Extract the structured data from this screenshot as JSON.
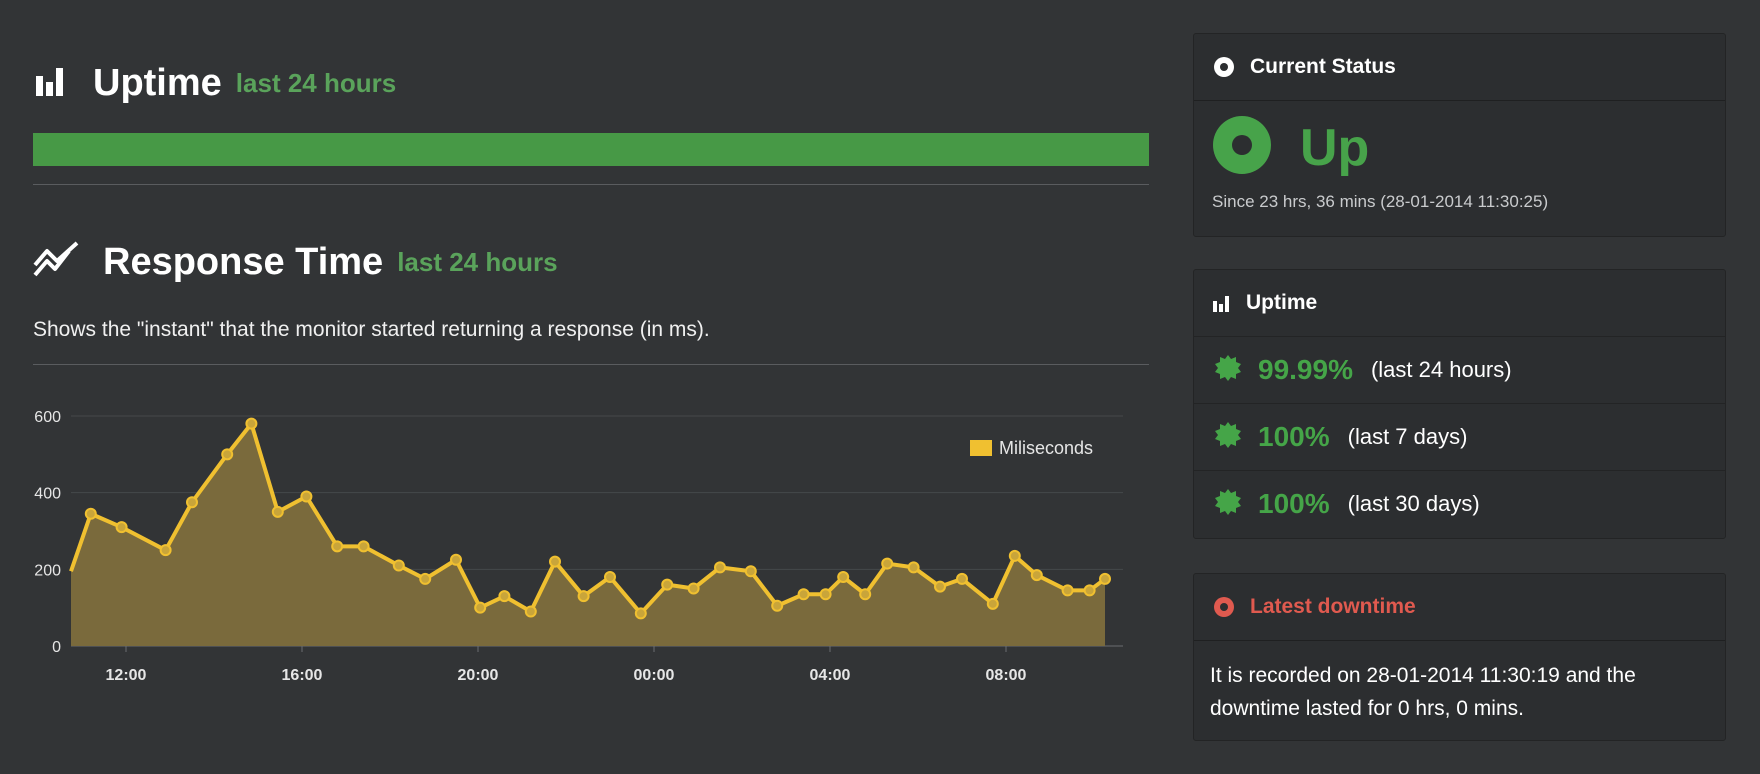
{
  "uptime_section": {
    "title": "Uptime",
    "subtitle": "last 24 hours",
    "bar_color": "#479946",
    "uptime_fraction": 1.0
  },
  "response_section": {
    "title": "Response Time",
    "subtitle": "last 24 hours",
    "description": "Shows the \"instant\" that the monitor started returning a response (in ms)."
  },
  "chart_data": {
    "type": "area",
    "legend": "Miliseconds",
    "legend_position": "top-right",
    "color": "#f0c030",
    "fill": "#7a6a3c",
    "ylim": [
      0,
      600
    ],
    "yticks": [
      "600",
      "400",
      "200",
      "0"
    ],
    "ytick_values": [
      600,
      400,
      200,
      0
    ],
    "xlim": [
      10.75,
      34.25
    ],
    "xticks": [
      "12:00",
      "16:00",
      "20:00",
      "00:00",
      "04:00",
      "08:00"
    ],
    "xtick_values": [
      12,
      16,
      20,
      24,
      28,
      32
    ],
    "grid": true,
    "x": [
      10.75,
      11.2,
      11.9,
      12.9,
      13.5,
      14.3,
      14.85,
      15.45,
      16.1,
      16.8,
      17.4,
      18.2,
      18.8,
      19.5,
      20.05,
      20.6,
      21.2,
      21.75,
      22.4,
      23.0,
      23.7,
      24.3,
      24.9,
      25.5,
      26.2,
      26.8,
      27.4,
      27.9,
      28.3,
      28.8,
      29.3,
      29.9,
      30.5,
      31.0,
      31.7,
      32.2,
      32.7,
      33.4,
      33.9,
      34.25
    ],
    "values": [
      195,
      345,
      310,
      250,
      375,
      500,
      580,
      350,
      390,
      260,
      260,
      210,
      175,
      225,
      100,
      130,
      90,
      220,
      130,
      180,
      85,
      160,
      150,
      205,
      195,
      105,
      135,
      135,
      180,
      135,
      215,
      205,
      155,
      175,
      110,
      235,
      185,
      145,
      145,
      175
    ]
  },
  "current_status": {
    "title": "Current Status",
    "status": "Up",
    "since": "Since 23 hrs, 36 mins (28-01-2014 11:30:25)",
    "color": "#47a34a"
  },
  "uptime_panel": {
    "title": "Uptime",
    "rows": [
      {
        "percent": "99.99%",
        "period": "(last 24 hours)"
      },
      {
        "percent": "100%",
        "period": "(last 7 days)"
      },
      {
        "percent": "100%",
        "period": "(last 30 days)"
      }
    ]
  },
  "latest_downtime": {
    "title": "Latest downtime",
    "title_color": "#e05a4f",
    "text": "It is recorded on 28-01-2014 11:30:19 and the downtime lasted for 0 hrs, 0 mins."
  }
}
